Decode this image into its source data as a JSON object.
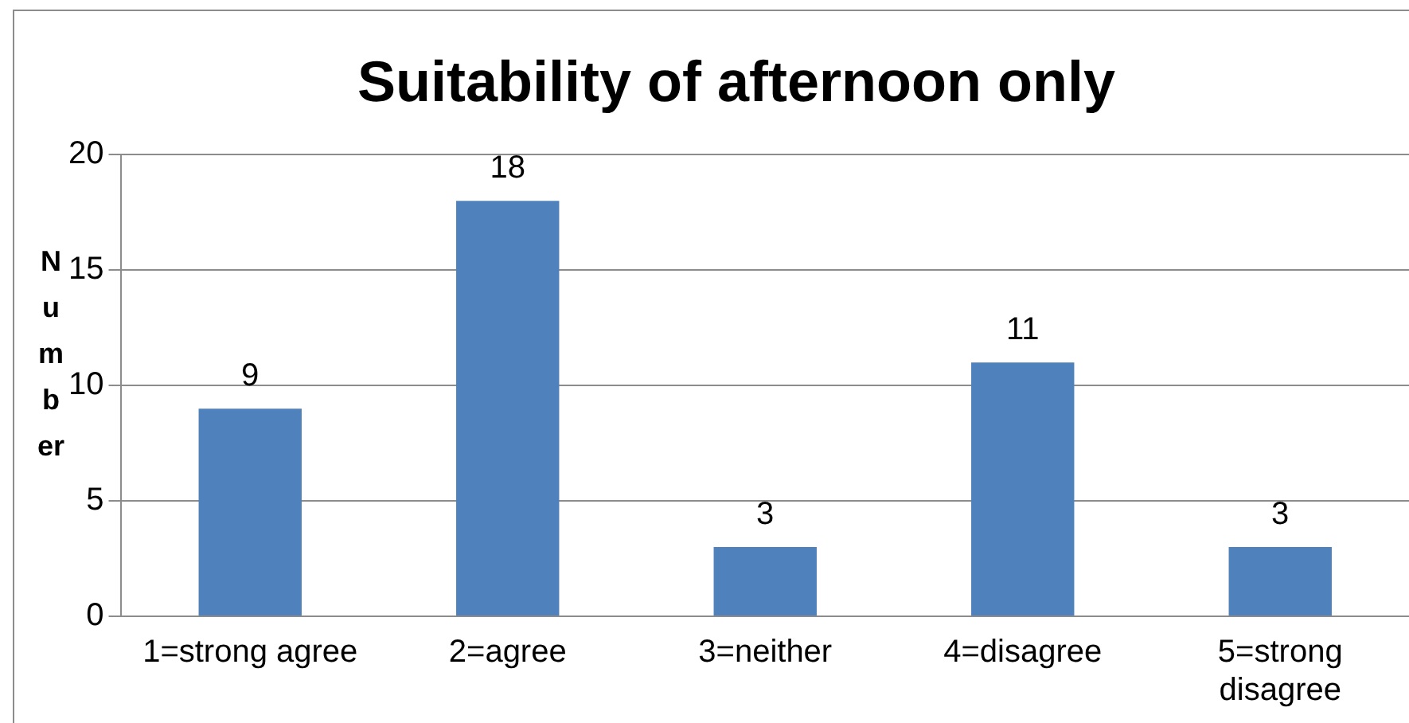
{
  "chart_data": {
    "type": "bar",
    "title": "Suitability of afternoon only",
    "ylabel": "Number",
    "categories": [
      "1=strong agree",
      "2=agree",
      "3=neither",
      "4=disagree",
      "5=strong disagree"
    ],
    "values": [
      9,
      18,
      3,
      11,
      3
    ],
    "color": "#4f81bd",
    "ylim": [
      0,
      20
    ],
    "yticks": [
      0,
      5,
      10,
      15,
      20
    ],
    "grid": "y",
    "data_labels": true,
    "legend": false
  }
}
